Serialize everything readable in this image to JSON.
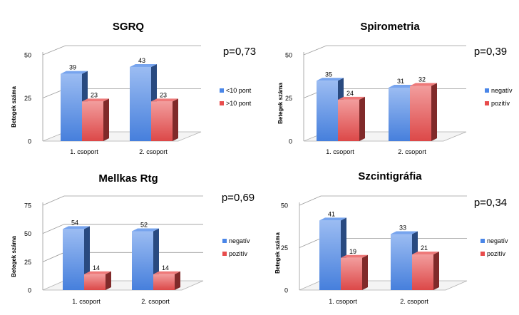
{
  "chart_data": [
    {
      "type": "bar",
      "title": "SGRQ",
      "p_value": "p=0,73",
      "ylabel": "Betegek száma",
      "xlabel": "",
      "ylim": [
        0,
        50
      ],
      "yticks": [
        "0",
        "25",
        "50"
      ],
      "categories": [
        "1. csoport",
        "2. csoport"
      ],
      "series": [
        {
          "name": "<10 pont",
          "values": [
            39,
            43
          ],
          "color": "#4a86e8"
        },
        {
          "name": ">10 pont",
          "values": [
            23,
            23
          ],
          "color": "#e84c4c"
        }
      ],
      "legend": "right"
    },
    {
      "type": "bar",
      "title": "Spirometria",
      "p_value": "p=0,39",
      "ylabel": "Betegek száma",
      "xlabel": "",
      "ylim": [
        0,
        50
      ],
      "yticks": [
        "0",
        "25",
        "50"
      ],
      "categories": [
        "1. csoport",
        "2. csoport"
      ],
      "series": [
        {
          "name": "negatív",
          "values": [
            35,
            31
          ],
          "color": "#4a86e8"
        },
        {
          "name": "pozitív",
          "values": [
            24,
            32
          ],
          "color": "#e84c4c"
        }
      ],
      "legend": "right"
    },
    {
      "type": "bar",
      "title": "Mellkas Rtg",
      "p_value": "p=0,69",
      "ylabel": "Betegek száma",
      "xlabel": "",
      "ylim": [
        0,
        75
      ],
      "yticks": [
        "0",
        "25",
        "50",
        "75"
      ],
      "categories": [
        "1. csoport",
        "2. csoport"
      ],
      "series": [
        {
          "name": "negatív",
          "values": [
            54,
            52
          ],
          "color": "#4a86e8"
        },
        {
          "name": "pozitív",
          "values": [
            14,
            14
          ],
          "color": "#e84c4c"
        }
      ],
      "legend": "right"
    },
    {
      "type": "bar",
      "title": "Szcintigráfia",
      "p_value": "p=0,34",
      "ylabel": "Betegek száma",
      "xlabel": "",
      "ylim": [
        0,
        50
      ],
      "yticks": [
        "0",
        "25",
        "50"
      ],
      "categories": [
        "1. csoport",
        "2. csoport"
      ],
      "series": [
        {
          "name": "negatív",
          "values": [
            41,
            33
          ],
          "color": "#4a86e8"
        },
        {
          "name": "pozitív",
          "values": [
            19,
            21
          ],
          "color": "#e84c4c"
        }
      ],
      "legend": "right"
    }
  ]
}
